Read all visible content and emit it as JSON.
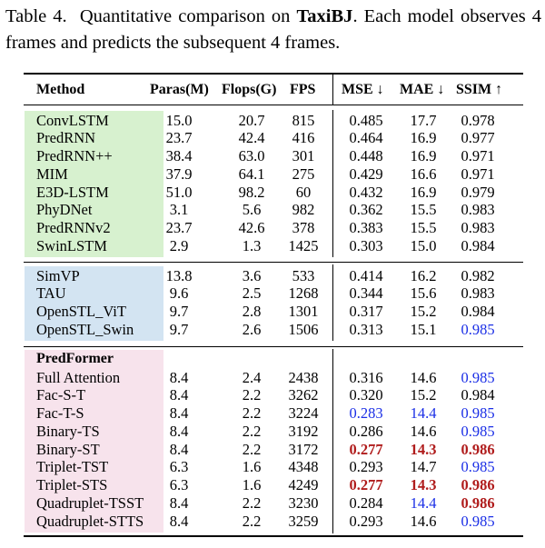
{
  "caption": {
    "label": "Table 4.",
    "text_before": "Quantitative comparison on",
    "dataset": "TaxiBJ",
    "text_after": ". Each model observes 4 frames and predicts the subsequent 4 frames."
  },
  "colors": {
    "band_1": "#d7f1cf",
    "band_2": "#d3e4f2",
    "band_3": "#f7e3ec",
    "best_red": "#b01c1c",
    "second_blue": "#1a2ee6"
  },
  "headers": [
    "Method",
    "Paras(M)",
    "Flops(G)",
    "FPS",
    "MSE ↓",
    "MAE ↓",
    "SSIM ↑"
  ],
  "groups": [
    {
      "title": "",
      "rows": [
        {
          "name": "ConvLSTM",
          "vals": [
            "15.0",
            "20.7",
            "815",
            "0.485",
            "17.7",
            "0.978"
          ],
          "styles": [
            "",
            "",
            "",
            "",
            "",
            ""
          ]
        },
        {
          "name": "PredRNN",
          "vals": [
            "23.7",
            "42.4",
            "416",
            "0.464",
            "16.9",
            "0.977"
          ],
          "styles": [
            "",
            "",
            "",
            "",
            "",
            ""
          ]
        },
        {
          "name": "PredRNN++",
          "vals": [
            "38.4",
            "63.0",
            "301",
            "0.448",
            "16.9",
            "0.971"
          ],
          "styles": [
            "",
            "",
            "",
            "",
            "",
            ""
          ]
        },
        {
          "name": "MIM",
          "vals": [
            "37.9",
            "64.1",
            "275",
            "0.429",
            "16.6",
            "0.971"
          ],
          "styles": [
            "",
            "",
            "",
            "",
            "",
            ""
          ]
        },
        {
          "name": "E3D-LSTM",
          "vals": [
            "51.0",
            "98.2",
            "60",
            "0.432",
            "16.9",
            "0.979"
          ],
          "styles": [
            "",
            "",
            "",
            "",
            "",
            ""
          ]
        },
        {
          "name": "PhyDNet",
          "vals": [
            "3.1",
            "5.6",
            "982",
            "0.362",
            "15.5",
            "0.983"
          ],
          "styles": [
            "",
            "",
            "",
            "",
            "",
            ""
          ]
        },
        {
          "name": "PredRNNv2",
          "vals": [
            "23.7",
            "42.6",
            "378",
            "0.383",
            "15.5",
            "0.983"
          ],
          "styles": [
            "",
            "",
            "",
            "",
            "",
            ""
          ]
        },
        {
          "name": "SwinLSTM",
          "vals": [
            "2.9",
            "1.3",
            "1425",
            "0.303",
            "15.0",
            "0.984"
          ],
          "styles": [
            "",
            "",
            "",
            "",
            "",
            ""
          ]
        }
      ]
    },
    {
      "title": "",
      "rows": [
        {
          "name": "SimVP",
          "vals": [
            "13.8",
            "3.6",
            "533",
            "0.414",
            "16.2",
            "0.982"
          ],
          "styles": [
            "",
            "",
            "",
            "",
            "",
            ""
          ]
        },
        {
          "name": "TAU",
          "vals": [
            "9.6",
            "2.5",
            "1268",
            "0.344",
            "15.6",
            "0.983"
          ],
          "styles": [
            "",
            "",
            "",
            "",
            "",
            ""
          ]
        },
        {
          "name": "OpenSTL_ViT",
          "vals": [
            "9.7",
            "2.8",
            "1301",
            "0.317",
            "15.2",
            "0.984"
          ],
          "styles": [
            "",
            "",
            "",
            "",
            "",
            ""
          ]
        },
        {
          "name": "OpenSTL_Swin",
          "vals": [
            "9.7",
            "2.6",
            "1506",
            "0.313",
            "15.1",
            "0.985"
          ],
          "styles": [
            "",
            "",
            "",
            "",
            "",
            "blue"
          ]
        }
      ]
    },
    {
      "title": "PredFormer",
      "rows": [
        {
          "name": "Full Attention",
          "vals": [
            "8.4",
            "2.4",
            "2438",
            "0.316",
            "14.6",
            "0.985"
          ],
          "styles": [
            "",
            "",
            "",
            "",
            "",
            "blue"
          ]
        },
        {
          "name": "Fac-S-T",
          "vals": [
            "8.4",
            "2.2",
            "3262",
            "0.320",
            "15.2",
            "0.984"
          ],
          "styles": [
            "",
            "",
            "",
            "",
            "",
            ""
          ]
        },
        {
          "name": "Fac-T-S",
          "vals": [
            "8.4",
            "2.2",
            "3224",
            "0.283",
            "14.4",
            "0.985"
          ],
          "styles": [
            "",
            "",
            "",
            "blue",
            "blue",
            "blue"
          ]
        },
        {
          "name": "Binary-TS",
          "vals": [
            "8.4",
            "2.2",
            "3192",
            "0.286",
            "14.6",
            "0.985"
          ],
          "styles": [
            "",
            "",
            "",
            "",
            "",
            "blue"
          ]
        },
        {
          "name": "Binary-ST",
          "vals": [
            "8.4",
            "2.2",
            "3172",
            "0.277",
            "14.3",
            "0.986"
          ],
          "styles": [
            "",
            "",
            "",
            "red",
            "red",
            "red"
          ]
        },
        {
          "name": "Triplet-TST",
          "vals": [
            "6.3",
            "1.6",
            "4348",
            "0.293",
            "14.7",
            "0.985"
          ],
          "styles": [
            "",
            "",
            "",
            "",
            "",
            "blue"
          ]
        },
        {
          "name": "Triplet-STS",
          "vals": [
            "6.3",
            "1.6",
            "4249",
            "0.277",
            "14.3",
            "0.986"
          ],
          "styles": [
            "",
            "",
            "",
            "red",
            "red",
            "red"
          ]
        },
        {
          "name": "Quadruplet-TSST",
          "vals": [
            "8.4",
            "2.2",
            "3230",
            "0.284",
            "14.4",
            "0.986"
          ],
          "styles": [
            "",
            "",
            "",
            "",
            "blue",
            "red"
          ]
        },
        {
          "name": "Quadruplet-STTS",
          "vals": [
            "8.4",
            "2.2",
            "3259",
            "0.293",
            "14.6",
            "0.985"
          ],
          "styles": [
            "",
            "",
            "",
            "",
            "",
            "blue"
          ]
        }
      ]
    }
  ]
}
